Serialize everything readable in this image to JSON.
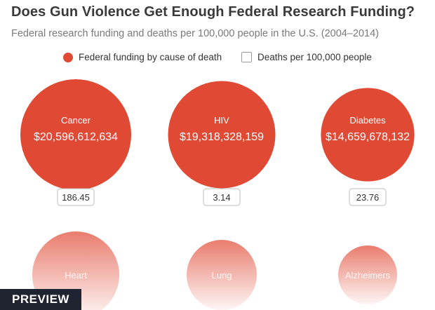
{
  "title": "Does Gun Violence Get Enough Federal Research Funding?",
  "subtitle": "Federal research funding and deaths per 100,000 people in the U.S. (2004–2014)",
  "legend": {
    "funding_label": "Federal funding by cause of death",
    "deaths_label": "Deaths per 100,000 people"
  },
  "preview_label": "PREVIEW",
  "chart_data": {
    "type": "bubble",
    "title": "Does Gun Violence Get Enough Federal Research Funding?",
    "subtitle": "Federal research funding and deaths per 100,000 people in the U.S. (2004–2014)",
    "series": [
      {
        "name": "Federal funding by cause of death",
        "color": "#e04a35"
      },
      {
        "name": "Deaths per 100,000 people",
        "color": "#ffffff"
      }
    ],
    "items": [
      {
        "cause": "Cancer",
        "funding_label": "$20,596,612,634",
        "funding": 20596612634,
        "deaths": "186.45"
      },
      {
        "cause": "HIV",
        "funding_label": "$19,318,328,159",
        "funding": 19318328159,
        "deaths": "3.14"
      },
      {
        "cause": "Diabetes",
        "funding_label": "$14,659,678,132",
        "funding": 14659678132,
        "deaths": "23.76"
      },
      {
        "cause": "Heart"
      },
      {
        "cause": "Lung"
      },
      {
        "cause": "Alzheimers"
      }
    ]
  }
}
